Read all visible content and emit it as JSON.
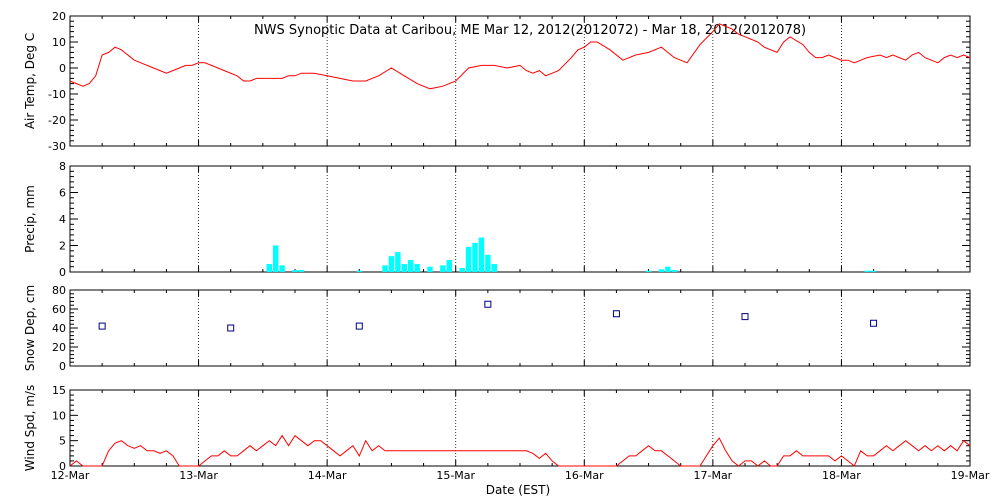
{
  "chart_data": {
    "title": "NWS Synoptic Data at Caribou, ME   Mar 12, 2012(2012072) - Mar 18, 2012(2012078)",
    "xlabel": "Date (EST)",
    "x_ticks": [
      "12-Mar",
      "13-Mar",
      "14-Mar",
      "15-Mar",
      "16-Mar",
      "17-Mar",
      "18-Mar",
      "19-Mar"
    ],
    "x_range_days": [
      0,
      7
    ],
    "grid": "dotted vertical lines at each day",
    "panels": [
      {
        "id": "air-temp",
        "type": "line",
        "ylabel": "Air Temp, Deg C",
        "ylim": [
          -30,
          20
        ],
        "yticks": [
          -30,
          -20,
          -10,
          0,
          10,
          20
        ],
        "color": "#ff0000",
        "series": [
          {
            "x": [
              0,
              0.05,
              0.1,
              0.15,
              0.2,
              0.25,
              0.3,
              0.35,
              0.4,
              0.5,
              0.55,
              0.6,
              0.7,
              0.75,
              0.8,
              0.85,
              0.9,
              0.95,
              1.0,
              1.05,
              1.1,
              1.2,
              1.3,
              1.35,
              1.4,
              1.45,
              1.5,
              1.55,
              1.6,
              1.65,
              1.7,
              1.75,
              1.8,
              1.9,
              2.0,
              2.1,
              2.2,
              2.25,
              2.3,
              2.4,
              2.5,
              2.6,
              2.7,
              2.8,
              2.9,
              3.0,
              3.1,
              3.2,
              3.3,
              3.4,
              3.5,
              3.55,
              3.6,
              3.65,
              3.7,
              3.8,
              3.9,
              3.95,
              4.0,
              4.05,
              4.1,
              4.2,
              4.3,
              4.4,
              4.5,
              4.6,
              4.7,
              4.8,
              4.9,
              5.0,
              5.05,
              5.1,
              5.15,
              5.2,
              5.25,
              5.3,
              5.35,
              5.4,
              5.5,
              5.55,
              5.6,
              5.7,
              5.75,
              5.8,
              5.85,
              5.9,
              5.95,
              6.0,
              6.05,
              6.1,
              6.15,
              6.2,
              6.3,
              6.35,
              6.4,
              6.45,
              6.5,
              6.55,
              6.6,
              6.65,
              6.7,
              6.75,
              6.8,
              6.85,
              6.9,
              6.95,
              7.0
            ],
            "y": [
              -5,
              -6,
              -7,
              -6,
              -3,
              5,
              6,
              8,
              7,
              3,
              2,
              1,
              -1,
              -2,
              -1,
              0,
              1,
              1,
              2,
              2,
              1,
              -1,
              -3,
              -5,
              -5,
              -4,
              -4,
              -4,
              -4,
              -4,
              -3,
              -3,
              -2,
              -2,
              -3,
              -4,
              -5,
              -5,
              -5,
              -3,
              0,
              -3,
              -6,
              -8,
              -7,
              -5,
              0,
              1,
              1,
              0,
              1,
              -1,
              -2,
              -1,
              -3,
              -1,
              4,
              7,
              8,
              10,
              10,
              7,
              3,
              5,
              6,
              8,
              4,
              2,
              9,
              14,
              17,
              16,
              15,
              13,
              12,
              11,
              10,
              8,
              6,
              10,
              12,
              9,
              6,
              4,
              4,
              5,
              4,
              3,
              3,
              2,
              3,
              4,
              5,
              4,
              5,
              4,
              3,
              5,
              6,
              4,
              3,
              2,
              4,
              5,
              4,
              5,
              4
            ],
            "name": ""
          }
        ]
      },
      {
        "id": "precip",
        "type": "bar",
        "ylabel": "Precip, mm",
        "ylim": [
          0,
          8
        ],
        "yticks": [
          0,
          2,
          4,
          6,
          8
        ],
        "color": "#00ffff",
        "bars": [
          {
            "x": 1.55,
            "v": 0.6
          },
          {
            "x": 1.6,
            "v": 2.0
          },
          {
            "x": 1.65,
            "v": 0.5
          },
          {
            "x": 1.75,
            "v": 0.15
          },
          {
            "x": 1.8,
            "v": 0.15
          },
          {
            "x": 2.25,
            "v": 0.1
          },
          {
            "x": 2.45,
            "v": 0.5
          },
          {
            "x": 2.5,
            "v": 1.2
          },
          {
            "x": 2.55,
            "v": 1.5
          },
          {
            "x": 2.6,
            "v": 0.6
          },
          {
            "x": 2.65,
            "v": 0.9
          },
          {
            "x": 2.7,
            "v": 0.6
          },
          {
            "x": 2.8,
            "v": 0.4
          },
          {
            "x": 2.9,
            "v": 0.5
          },
          {
            "x": 2.95,
            "v": 0.9
          },
          {
            "x": 3.05,
            "v": 0.3
          },
          {
            "x": 3.1,
            "v": 1.9
          },
          {
            "x": 3.15,
            "v": 2.2
          },
          {
            "x": 3.2,
            "v": 2.6
          },
          {
            "x": 3.25,
            "v": 1.3
          },
          {
            "x": 3.3,
            "v": 0.6
          },
          {
            "x": 4.5,
            "v": 0.1
          },
          {
            "x": 4.6,
            "v": 0.2
          },
          {
            "x": 4.65,
            "v": 0.4
          },
          {
            "x": 4.7,
            "v": 0.15
          },
          {
            "x": 6.2,
            "v": 0.1
          },
          {
            "x": 6.25,
            "v": 0.1
          }
        ]
      },
      {
        "id": "snow-depth",
        "type": "scatter",
        "ylabel": "Snow Dep, cm",
        "ylim": [
          0,
          80
        ],
        "yticks": [
          0,
          20,
          40,
          60,
          80
        ],
        "color": "#000080",
        "points": [
          {
            "x": 0.25,
            "y": 42
          },
          {
            "x": 1.25,
            "y": 40
          },
          {
            "x": 2.25,
            "y": 42
          },
          {
            "x": 3.25,
            "y": 65
          },
          {
            "x": 4.25,
            "y": 55
          },
          {
            "x": 5.25,
            "y": 52
          },
          {
            "x": 6.25,
            "y": 45
          }
        ]
      },
      {
        "id": "wind-speed",
        "type": "line",
        "ylabel": "Wind Spd, m/s",
        "ylim": [
          0,
          15
        ],
        "yticks": [
          0,
          5,
          10,
          15
        ],
        "color": "#ff0000",
        "series": [
          {
            "x": [
              0,
              0.05,
              0.1,
              0.15,
              0.2,
              0.25,
              0.3,
              0.35,
              0.4,
              0.45,
              0.5,
              0.55,
              0.6,
              0.65,
              0.7,
              0.75,
              0.8,
              0.85,
              0.9,
              0.95,
              1.0,
              1.05,
              1.1,
              1.15,
              1.2,
              1.25,
              1.3,
              1.35,
              1.4,
              1.45,
              1.5,
              1.55,
              1.6,
              1.65,
              1.7,
              1.75,
              1.8,
              1.85,
              1.9,
              1.95,
              2.0,
              2.05,
              2.1,
              2.15,
              2.2,
              2.25,
              2.3,
              2.35,
              2.4,
              2.45,
              2.5,
              2.6,
              2.7,
              2.8,
              2.9,
              3.0,
              3.1,
              3.2,
              3.3,
              3.4,
              3.5,
              3.55,
              3.6,
              3.65,
              3.7,
              3.75,
              3.8,
              3.85,
              3.9,
              3.95,
              4.0,
              4.05,
              4.1,
              4.15,
              4.2,
              4.25,
              4.3,
              4.35,
              4.4,
              4.45,
              4.5,
              4.55,
              4.6,
              4.65,
              4.7,
              4.75,
              4.8,
              4.85,
              4.9,
              4.95,
              5.0,
              5.05,
              5.1,
              5.15,
              5.2,
              5.25,
              5.3,
              5.35,
              5.4,
              5.45,
              5.5,
              5.55,
              5.6,
              5.65,
              5.7,
              5.75,
              5.8,
              5.85,
              5.9,
              5.95,
              6.0,
              6.05,
              6.1,
              6.15,
              6.2,
              6.25,
              6.3,
              6.35,
              6.4,
              6.45,
              6.5,
              6.55,
              6.6,
              6.65,
              6.7,
              6.75,
              6.8,
              6.85,
              6.9,
              6.95,
              7.0
            ],
            "y": [
              0,
              1,
              0,
              0,
              0,
              0,
              3,
              4.5,
              5,
              4,
              3.5,
              4,
              3,
              3,
              2.5,
              3,
              2,
              0,
              0,
              0,
              0,
              1,
              2,
              2,
              3,
              2,
              2,
              3,
              4,
              3,
              4,
              5,
              4,
              6,
              4,
              6,
              5,
              4,
              5,
              5,
              4,
              3,
              2,
              3,
              4,
              2,
              5,
              3,
              4,
              3,
              3,
              3,
              3,
              3,
              3,
              3,
              3,
              3,
              3,
              3,
              3,
              3,
              2.5,
              1.5,
              2.5,
              1,
              0,
              0,
              0,
              0,
              0,
              0,
              0,
              0,
              0,
              0,
              1,
              2,
              2,
              3,
              4,
              3,
              3,
              2,
              1,
              0,
              0,
              0,
              0,
              2,
              4,
              5.5,
              3,
              1,
              0,
              1,
              1,
              0,
              1,
              0,
              0,
              2,
              2,
              3,
              2,
              2,
              2,
              2,
              2,
              1,
              2,
              1,
              0,
              3,
              2,
              2,
              3,
              4,
              3,
              4,
              5,
              4,
              3,
              4,
              3,
              4,
              3,
              4,
              3,
              5,
              4
            ],
            "name": ""
          }
        ]
      }
    ]
  }
}
